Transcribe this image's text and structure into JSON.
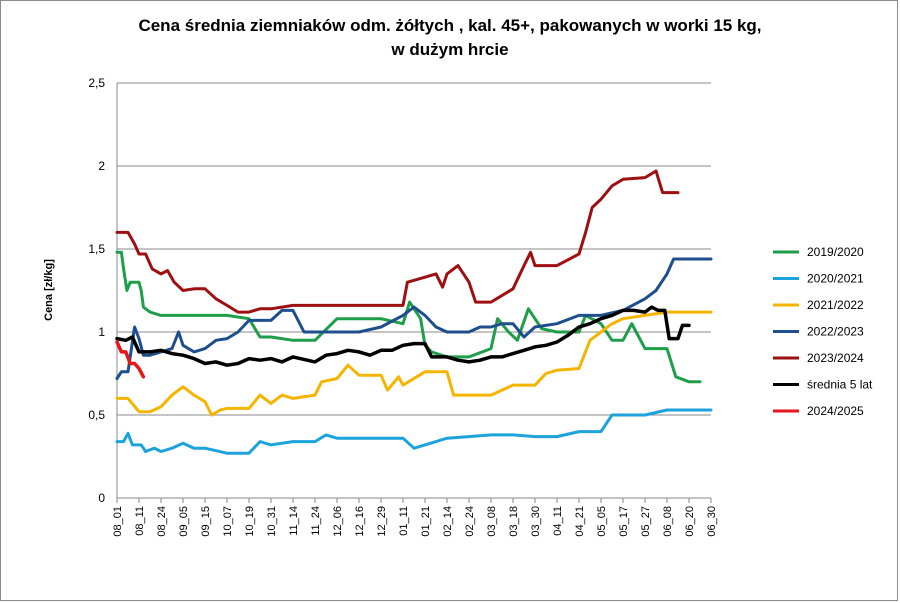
{
  "chart_data": {
    "type": "line",
    "title_line1": "Cena średnia ziemniaków odm. żółtych , kal. 45+, pakowanych w worki 15 kg,",
    "title_line2": "w dużym hrcie",
    "ylabel": "Cena [zł/kg]",
    "ylim": [
      0,
      2.5
    ],
    "yticks": [
      0,
      0.5,
      1,
      1.5,
      2,
      2.5
    ],
    "ytick_labels": [
      "0",
      "0,5",
      "1",
      "1,5",
      "2",
      "2,5"
    ],
    "grid": "horizontal",
    "legend_position": "right",
    "categories": [
      "08_01",
      "08_11",
      "08_24",
      "09_05",
      "09_15",
      "10_07",
      "10_19",
      "10_31",
      "11_14",
      "11_24",
      "12_06",
      "12_16",
      "12_29",
      "01_11",
      "01_21",
      "02_14",
      "02_24",
      "03_08",
      "03_18",
      "03_30",
      "04_11",
      "04_21",
      "05_05",
      "05_17",
      "05_27",
      "06_08",
      "06_20",
      "06_30"
    ],
    "series": [
      {
        "name": "2019/2020",
        "color": "#1f9e4a",
        "width": 3,
        "points": [
          [
            0,
            1.48
          ],
          [
            0.2,
            1.48
          ],
          [
            0.3,
            1.38
          ],
          [
            0.45,
            1.25
          ],
          [
            0.6,
            1.3
          ],
          [
            1.0,
            1.3
          ],
          [
            1.1,
            1.25
          ],
          [
            1.2,
            1.15
          ],
          [
            1.5,
            1.12
          ],
          [
            2,
            1.1
          ],
          [
            3,
            1.1
          ],
          [
            4,
            1.1
          ],
          [
            5,
            1.1
          ],
          [
            6,
            1.08
          ],
          [
            6.5,
            0.97
          ],
          [
            7,
            0.97
          ],
          [
            8,
            0.95
          ],
          [
            9,
            0.95
          ],
          [
            10,
            1.08
          ],
          [
            11,
            1.08
          ],
          [
            12,
            1.08
          ],
          [
            13,
            1.05
          ],
          [
            13.3,
            1.18
          ],
          [
            13.8,
            1.08
          ],
          [
            14,
            0.92
          ],
          [
            14.3,
            0.88
          ],
          [
            15,
            0.85
          ],
          [
            16,
            0.85
          ],
          [
            17,
            0.9
          ],
          [
            17.3,
            1.08
          ],
          [
            17.8,
            1.0
          ],
          [
            18.2,
            0.95
          ],
          [
            18.7,
            1.14
          ],
          [
            19.3,
            1.02
          ],
          [
            20,
            1.0
          ],
          [
            21,
            1.0
          ],
          [
            21.3,
            1.1
          ],
          [
            22,
            1.05
          ],
          [
            22.5,
            0.95
          ],
          [
            23,
            0.95
          ],
          [
            23.4,
            1.05
          ],
          [
            24,
            0.9
          ],
          [
            25,
            0.9
          ],
          [
            25.4,
            0.73
          ],
          [
            26,
            0.7
          ],
          [
            26.5,
            0.7
          ]
        ]
      },
      {
        "name": "2020/2021",
        "color": "#1ca3dc",
        "width": 3,
        "points": [
          [
            0,
            0.34
          ],
          [
            0.3,
            0.34
          ],
          [
            0.5,
            0.39
          ],
          [
            0.7,
            0.32
          ],
          [
            1.1,
            0.32
          ],
          [
            1.3,
            0.28
          ],
          [
            1.7,
            0.3
          ],
          [
            2,
            0.28
          ],
          [
            2.5,
            0.3
          ],
          [
            3,
            0.33
          ],
          [
            3.5,
            0.3
          ],
          [
            4,
            0.3
          ],
          [
            5,
            0.27
          ],
          [
            6,
            0.27
          ],
          [
            6.5,
            0.34
          ],
          [
            7,
            0.32
          ],
          [
            8,
            0.34
          ],
          [
            9,
            0.34
          ],
          [
            9.5,
            0.38
          ],
          [
            10,
            0.36
          ],
          [
            11,
            0.36
          ],
          [
            12,
            0.36
          ],
          [
            13,
            0.36
          ],
          [
            13.5,
            0.3
          ],
          [
            14,
            0.32
          ],
          [
            15,
            0.36
          ],
          [
            16,
            0.37
          ],
          [
            17,
            0.38
          ],
          [
            18,
            0.38
          ],
          [
            19,
            0.37
          ],
          [
            20,
            0.37
          ],
          [
            21,
            0.4
          ],
          [
            22,
            0.4
          ],
          [
            22.5,
            0.5
          ],
          [
            23,
            0.5
          ],
          [
            24,
            0.5
          ],
          [
            25,
            0.53
          ],
          [
            26,
            0.53
          ],
          [
            27,
            0.53
          ]
        ]
      },
      {
        "name": "2021/2022",
        "color": "#f5b400",
        "width": 3,
        "points": [
          [
            0,
            0.6
          ],
          [
            0.5,
            0.6
          ],
          [
            1,
            0.52
          ],
          [
            1.5,
            0.52
          ],
          [
            2,
            0.55
          ],
          [
            2.5,
            0.62
          ],
          [
            3,
            0.67
          ],
          [
            3.5,
            0.62
          ],
          [
            4,
            0.58
          ],
          [
            4.3,
            0.5
          ],
          [
            4.7,
            0.53
          ],
          [
            5,
            0.54
          ],
          [
            6,
            0.54
          ],
          [
            6.5,
            0.62
          ],
          [
            7,
            0.57
          ],
          [
            7.5,
            0.62
          ],
          [
            8,
            0.6
          ],
          [
            9,
            0.62
          ],
          [
            9.3,
            0.7
          ],
          [
            10,
            0.72
          ],
          [
            10.5,
            0.8
          ],
          [
            11,
            0.74
          ],
          [
            12,
            0.74
          ],
          [
            12.3,
            0.65
          ],
          [
            12.8,
            0.73
          ],
          [
            13,
            0.68
          ],
          [
            13.5,
            0.72
          ],
          [
            14,
            0.76
          ],
          [
            15,
            0.76
          ],
          [
            15.3,
            0.62
          ],
          [
            16,
            0.62
          ],
          [
            17,
            0.62
          ],
          [
            18,
            0.68
          ],
          [
            19,
            0.68
          ],
          [
            19.5,
            0.75
          ],
          [
            20,
            0.77
          ],
          [
            21,
            0.78
          ],
          [
            21.5,
            0.95
          ],
          [
            22,
            1.0
          ],
          [
            22.5,
            1.05
          ],
          [
            23,
            1.08
          ],
          [
            24,
            1.1
          ],
          [
            25,
            1.12
          ],
          [
            26,
            1.12
          ],
          [
            27,
            1.12
          ]
        ]
      },
      {
        "name": "2022/2023",
        "color": "#1f4e8c",
        "width": 3,
        "points": [
          [
            0,
            0.72
          ],
          [
            0.2,
            0.76
          ],
          [
            0.5,
            0.76
          ],
          [
            0.8,
            1.03
          ],
          [
            1,
            0.96
          ],
          [
            1.2,
            0.86
          ],
          [
            1.5,
            0.86
          ],
          [
            2,
            0.88
          ],
          [
            2.5,
            0.9
          ],
          [
            2.8,
            1.0
          ],
          [
            3,
            0.92
          ],
          [
            3.5,
            0.88
          ],
          [
            4,
            0.9
          ],
          [
            4.5,
            0.95
          ],
          [
            5,
            0.96
          ],
          [
            5.5,
            1.0
          ],
          [
            6,
            1.07
          ],
          [
            7,
            1.07
          ],
          [
            7.5,
            1.13
          ],
          [
            8,
            1.13
          ],
          [
            8.5,
            1.0
          ],
          [
            9,
            1.0
          ],
          [
            10,
            1.0
          ],
          [
            11,
            1.0
          ],
          [
            12,
            1.03
          ],
          [
            13,
            1.1
          ],
          [
            13.5,
            1.15
          ],
          [
            14,
            1.1
          ],
          [
            14.5,
            1.03
          ],
          [
            15,
            1.0
          ],
          [
            16,
            1.0
          ],
          [
            16.5,
            1.03
          ],
          [
            17,
            1.03
          ],
          [
            17.5,
            1.05
          ],
          [
            18,
            1.05
          ],
          [
            18.5,
            0.97
          ],
          [
            19,
            1.03
          ],
          [
            20,
            1.05
          ],
          [
            21,
            1.1
          ],
          [
            22,
            1.1
          ],
          [
            23,
            1.13
          ],
          [
            24,
            1.2
          ],
          [
            24.5,
            1.25
          ],
          [
            25,
            1.35
          ],
          [
            25.3,
            1.44
          ],
          [
            26,
            1.44
          ],
          [
            27,
            1.44
          ]
        ]
      },
      {
        "name": "2023/2024",
        "color": "#9e0f12",
        "width": 3,
        "points": [
          [
            0,
            1.6
          ],
          [
            0.5,
            1.6
          ],
          [
            0.8,
            1.53
          ],
          [
            1,
            1.47
          ],
          [
            1.3,
            1.47
          ],
          [
            1.6,
            1.38
          ],
          [
            2,
            1.35
          ],
          [
            2.3,
            1.37
          ],
          [
            2.6,
            1.3
          ],
          [
            3,
            1.25
          ],
          [
            3.5,
            1.26
          ],
          [
            4,
            1.26
          ],
          [
            4.5,
            1.2
          ],
          [
            5,
            1.16
          ],
          [
            5.5,
            1.12
          ],
          [
            6,
            1.12
          ],
          [
            6.5,
            1.14
          ],
          [
            7,
            1.14
          ],
          [
            8,
            1.16
          ],
          [
            9,
            1.16
          ],
          [
            10,
            1.16
          ],
          [
            11,
            1.16
          ],
          [
            12,
            1.16
          ],
          [
            13,
            1.16
          ],
          [
            13.2,
            1.3
          ],
          [
            14,
            1.33
          ],
          [
            14.5,
            1.35
          ],
          [
            14.8,
            1.27
          ],
          [
            15,
            1.35
          ],
          [
            15.5,
            1.4
          ],
          [
            16,
            1.3
          ],
          [
            16.3,
            1.18
          ],
          [
            17,
            1.18
          ],
          [
            18,
            1.26
          ],
          [
            18.5,
            1.4
          ],
          [
            18.8,
            1.48
          ],
          [
            19,
            1.4
          ],
          [
            20,
            1.4
          ],
          [
            21,
            1.47
          ],
          [
            21.3,
            1.6
          ],
          [
            21.6,
            1.75
          ],
          [
            22,
            1.8
          ],
          [
            22.5,
            1.88
          ],
          [
            23,
            1.92
          ],
          [
            24,
            1.93
          ],
          [
            24.5,
            1.97
          ],
          [
            24.8,
            1.84
          ],
          [
            25,
            1.84
          ],
          [
            25.5,
            1.84
          ]
        ]
      },
      {
        "name": "średnia 5 lat",
        "color": "#000000",
        "width": 3.5,
        "points": [
          [
            0,
            0.96
          ],
          [
            0.4,
            0.95
          ],
          [
            0.7,
            0.97
          ],
          [
            1,
            0.88
          ],
          [
            1.5,
            0.88
          ],
          [
            2,
            0.89
          ],
          [
            2.5,
            0.87
          ],
          [
            3,
            0.86
          ],
          [
            3.5,
            0.84
          ],
          [
            4,
            0.81
          ],
          [
            4.5,
            0.82
          ],
          [
            5,
            0.8
          ],
          [
            5.5,
            0.81
          ],
          [
            6,
            0.84
          ],
          [
            6.5,
            0.83
          ],
          [
            7,
            0.84
          ],
          [
            7.5,
            0.82
          ],
          [
            8,
            0.85
          ],
          [
            9,
            0.82
          ],
          [
            9.5,
            0.86
          ],
          [
            10,
            0.87
          ],
          [
            10.5,
            0.89
          ],
          [
            11,
            0.88
          ],
          [
            11.5,
            0.86
          ],
          [
            12,
            0.89
          ],
          [
            12.5,
            0.89
          ],
          [
            13,
            0.92
          ],
          [
            13.5,
            0.93
          ],
          [
            14,
            0.93
          ],
          [
            14.3,
            0.85
          ],
          [
            15,
            0.85
          ],
          [
            15.5,
            0.83
          ],
          [
            16,
            0.82
          ],
          [
            16.5,
            0.83
          ],
          [
            17,
            0.85
          ],
          [
            17.5,
            0.85
          ],
          [
            18,
            0.87
          ],
          [
            18.5,
            0.89
          ],
          [
            19,
            0.91
          ],
          [
            19.5,
            0.92
          ],
          [
            20,
            0.94
          ],
          [
            20.5,
            0.98
          ],
          [
            21,
            1.03
          ],
          [
            21.5,
            1.05
          ],
          [
            22,
            1.08
          ],
          [
            22.5,
            1.1
          ],
          [
            23,
            1.13
          ],
          [
            23.5,
            1.13
          ],
          [
            24,
            1.12
          ],
          [
            24.3,
            1.15
          ],
          [
            24.6,
            1.13
          ],
          [
            24.9,
            1.13
          ],
          [
            25.1,
            0.96
          ],
          [
            25.5,
            0.96
          ],
          [
            25.7,
            1.04
          ],
          [
            26,
            1.04
          ]
        ]
      },
      {
        "name": "2024/2025",
        "color": "#e8151a",
        "width": 3.5,
        "points": [
          [
            0,
            0.94
          ],
          [
            0.2,
            0.88
          ],
          [
            0.4,
            0.88
          ],
          [
            0.6,
            0.81
          ],
          [
            0.8,
            0.81
          ],
          [
            1,
            0.78
          ],
          [
            1.2,
            0.73
          ]
        ]
      }
    ]
  },
  "legend_items": [
    "2019/2020",
    "2020/2021",
    "2021/2022",
    "2022/2023",
    "2023/2024",
    "średnia 5 lat",
    "2024/2025"
  ]
}
